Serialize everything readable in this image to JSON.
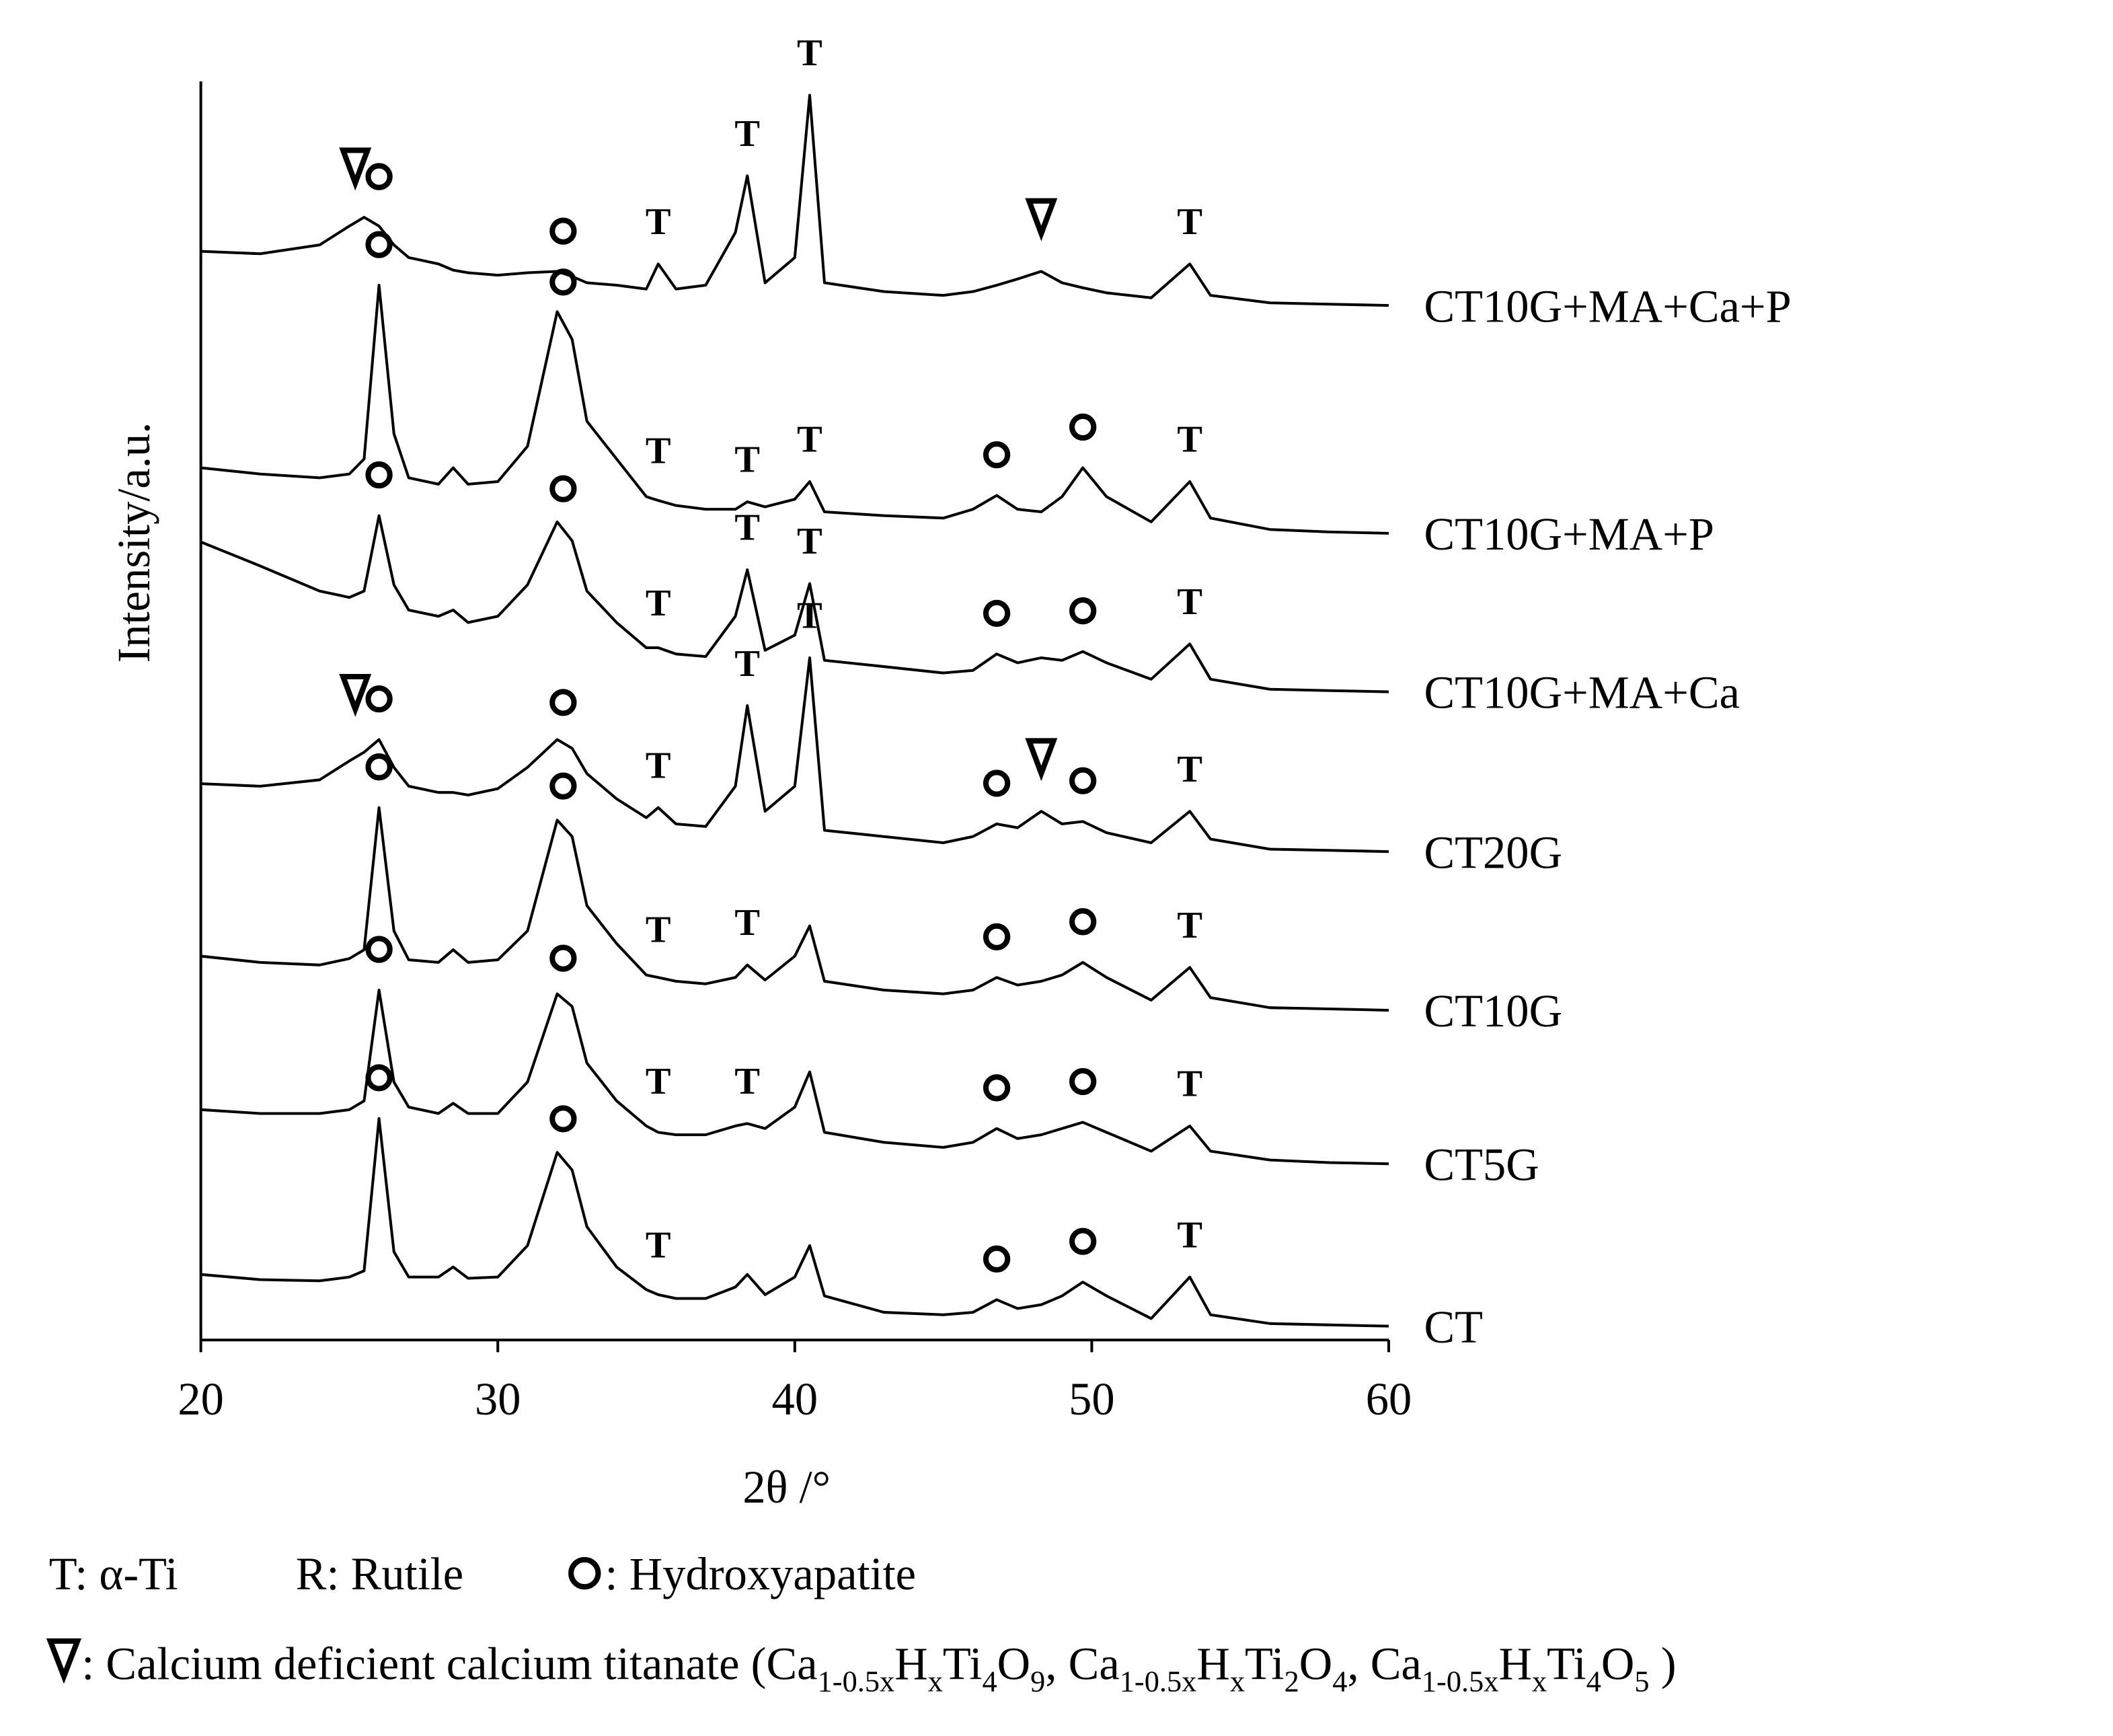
{
  "chart_data": {
    "type": "line",
    "x_label": "2θ /°",
    "y_label": "Intensity/a.u.",
    "xlim": [
      20,
      60
    ],
    "xticks": [
      20,
      30,
      40,
      50,
      60
    ],
    "ylim": [
      0,
      100
    ],
    "color": "#000000",
    "x": [
      20,
      22,
      24,
      25,
      25.5,
      26,
      26.5,
      27,
      28,
      28.5,
      29,
      30,
      31,
      32,
      32.5,
      33,
      34,
      35,
      35.4,
      36,
      37,
      38,
      38.4,
      39,
      40,
      40.5,
      41,
      43,
      45,
      46,
      46.8,
      47.5,
      48.3,
      49,
      49.7,
      50.5,
      52,
      53.3,
      54,
      56,
      58,
      60
    ],
    "series": [
      {
        "name": "CT",
        "values": [
          5.2,
          4.8,
          4.7,
          5.0,
          5.5,
          17.6,
          7.0,
          5.0,
          5.0,
          5.8,
          4.9,
          5.0,
          7.5,
          14.9,
          13.5,
          9.0,
          5.8,
          4.0,
          3.6,
          3.3,
          3.3,
          4.2,
          5.2,
          3.6,
          5.0,
          7.5,
          3.5,
          2.2,
          2.0,
          2.2,
          3.2,
          2.5,
          2.8,
          3.5,
          4.6,
          3.5,
          1.7,
          5.0,
          2.0,
          1.3,
          1.2,
          1.1
        ],
        "peaks": [
          {
            "x": 26,
            "marker": "circle"
          },
          {
            "x": 32.2,
            "marker": "circle"
          },
          {
            "x": 35.4,
            "label": "T"
          },
          {
            "x": 46.8,
            "marker": "circle"
          },
          {
            "x": 49.7,
            "marker": "circle"
          },
          {
            "x": 53.3,
            "label": "T"
          }
        ]
      },
      {
        "name": "CT5G",
        "values": [
          18.3,
          18.0,
          18.0,
          18.3,
          19.0,
          27.8,
          20.5,
          18.5,
          18.0,
          18.8,
          18.0,
          18.0,
          20.5,
          27.5,
          26.5,
          22.0,
          19.0,
          17.0,
          16.5,
          16.3,
          16.3,
          17.0,
          17.2,
          16.8,
          18.5,
          21.3,
          16.5,
          15.7,
          15.3,
          15.7,
          16.8,
          16.0,
          16.3,
          16.8,
          17.3,
          16.5,
          15.0,
          17.0,
          15.0,
          14.3,
          14.1,
          14.0
        ],
        "peaks": [
          {
            "x": 26,
            "marker": "circle"
          },
          {
            "x": 32.2,
            "marker": "circle"
          },
          {
            "x": 35.4,
            "label": "T"
          },
          {
            "x": 38.4,
            "label": "T"
          },
          {
            "x": 46.8,
            "marker": "circle"
          },
          {
            "x": 49.7,
            "marker": "circle"
          },
          {
            "x": 53.3,
            "label": "T"
          }
        ]
      },
      {
        "name": "CT10G",
        "values": [
          30.5,
          30.0,
          29.8,
          30.3,
          31.0,
          42.3,
          32.5,
          30.2,
          30.0,
          31.0,
          30.0,
          30.2,
          32.5,
          41.3,
          40.0,
          34.5,
          31.5,
          29.0,
          28.8,
          28.5,
          28.3,
          28.8,
          29.8,
          28.6,
          30.5,
          32.9,
          28.5,
          27.8,
          27.5,
          27.8,
          28.8,
          28.2,
          28.5,
          29.0,
          30.0,
          28.8,
          27.0,
          29.6,
          27.2,
          26.4,
          26.3,
          26.2
        ],
        "peaks": [
          {
            "x": 26,
            "marker": "circle"
          },
          {
            "x": 32.2,
            "marker": "circle"
          },
          {
            "x": 35.4,
            "label": "T"
          },
          {
            "x": 38.4,
            "label": "T"
          },
          {
            "x": 46.8,
            "marker": "circle"
          },
          {
            "x": 49.7,
            "marker": "circle"
          },
          {
            "x": 53.3,
            "label": "T"
          }
        ]
      },
      {
        "name": "CT20G",
        "values": [
          44.2,
          44.0,
          44.5,
          46.0,
          46.7,
          47.7,
          45.5,
          44.0,
          43.5,
          43.5,
          43.3,
          43.8,
          45.5,
          47.7,
          47.0,
          45.0,
          43.0,
          41.5,
          42.3,
          41.0,
          40.8,
          44.0,
          50.4,
          42.0,
          44.0,
          54.2,
          40.5,
          40.0,
          39.5,
          40.0,
          41.0,
          40.7,
          42.0,
          41.0,
          41.2,
          40.3,
          39.5,
          42.0,
          39.8,
          39.0,
          38.9,
          38.8
        ],
        "peaks": [
          {
            "x": 25.2,
            "marker": "triangle"
          },
          {
            "x": 26,
            "marker": "circle"
          },
          {
            "x": 32.2,
            "marker": "circle"
          },
          {
            "x": 35.4,
            "label": "T"
          },
          {
            "x": 38.4,
            "label": "T"
          },
          {
            "x": 40.5,
            "label": "T"
          },
          {
            "x": 46.8,
            "marker": "circle"
          },
          {
            "x": 48.3,
            "marker": "triangle"
          },
          {
            "x": 49.7,
            "marker": "circle"
          },
          {
            "x": 53.3,
            "label": "T"
          }
        ]
      },
      {
        "name": "CT10G+MA+Ca",
        "values": [
          63.4,
          61.5,
          59.5,
          59.0,
          59.5,
          65.5,
          60.0,
          58.0,
          57.5,
          58.0,
          57.0,
          57.5,
          60.0,
          65.0,
          63.5,
          59.5,
          57.0,
          55.0,
          55.0,
          54.5,
          54.3,
          57.5,
          61.2,
          54.8,
          56.0,
          60.1,
          54.0,
          53.5,
          53.0,
          53.2,
          54.5,
          53.8,
          54.2,
          54.0,
          54.7,
          53.8,
          52.5,
          55.3,
          52.5,
          51.7,
          51.6,
          51.5
        ],
        "peaks": [
          {
            "x": 26,
            "marker": "circle"
          },
          {
            "x": 32.2,
            "marker": "circle"
          },
          {
            "x": 35.4,
            "label": "T"
          },
          {
            "x": 38.4,
            "label": "T"
          },
          {
            "x": 40.5,
            "label": "T"
          },
          {
            "x": 46.8,
            "marker": "circle"
          },
          {
            "x": 49.7,
            "marker": "circle"
          },
          {
            "x": 53.3,
            "label": "T"
          }
        ]
      },
      {
        "name": "CT10G+MA+P",
        "values": [
          69.3,
          68.8,
          68.5,
          68.8,
          70.0,
          83.8,
          72.0,
          68.5,
          68.0,
          69.3,
          68.0,
          68.2,
          71.0,
          81.7,
          79.5,
          73.0,
          70.0,
          67.0,
          66.7,
          66.3,
          66.0,
          66.0,
          66.6,
          66.2,
          66.8,
          68.2,
          65.8,
          65.5,
          65.3,
          66.0,
          67.1,
          66.0,
          65.8,
          67.0,
          69.3,
          67.0,
          65.0,
          68.2,
          65.3,
          64.4,
          64.2,
          64.1
        ],
        "peaks": [
          {
            "x": 26,
            "marker": "circle"
          },
          {
            "x": 32.2,
            "marker": "circle"
          },
          {
            "x": 35.4,
            "label": "T"
          },
          {
            "x": 38.4,
            "label": "T"
          },
          {
            "x": 40.5,
            "label": "T"
          },
          {
            "x": 46.8,
            "marker": "circle"
          },
          {
            "x": 49.7,
            "marker": "circle"
          },
          {
            "x": 53.3,
            "label": "T"
          }
        ]
      },
      {
        "name": "CT10G+MA+Ca+P",
        "values": [
          86.5,
          86.3,
          87.0,
          88.5,
          89.2,
          88.5,
          87.0,
          86.0,
          85.5,
          85.0,
          84.8,
          84.6,
          84.8,
          84.9,
          84.5,
          84.0,
          83.8,
          83.5,
          85.5,
          83.5,
          83.8,
          88.0,
          92.5,
          84.0,
          86.0,
          98.9,
          84.0,
          83.3,
          83.0,
          83.3,
          83.8,
          84.3,
          84.9,
          84.0,
          83.6,
          83.2,
          82.8,
          85.5,
          83.0,
          82.4,
          82.3,
          82.2
        ],
        "peaks": [
          {
            "x": 25.2,
            "marker": "triangle"
          },
          {
            "x": 26,
            "marker": "circle"
          },
          {
            "x": 32.2,
            "marker": "circle"
          },
          {
            "x": 35.4,
            "label": "T"
          },
          {
            "x": 38.4,
            "label": "T"
          },
          {
            "x": 40.5,
            "label": "T"
          },
          {
            "x": 48.3,
            "marker": "triangle"
          },
          {
            "x": 53.3,
            "label": "T"
          }
        ]
      }
    ],
    "legend": [
      "T: α-Ti",
      "R: Rutile",
      ": Hydroxyapatite"
    ],
    "legend_note": [
      ": Calcium deficient calcium titanate (Ca",
      "1-0.5x",
      "H",
      "x",
      "Ti",
      "4",
      "O",
      "9",
      ",  Ca",
      "1-0.5x",
      "H",
      "x",
      "Ti",
      "2",
      "O",
      "4",
      ",  Ca",
      "1-0.5x",
      "H",
      "x",
      "Ti",
      "4",
      "O",
      "5",
      " )"
    ]
  }
}
